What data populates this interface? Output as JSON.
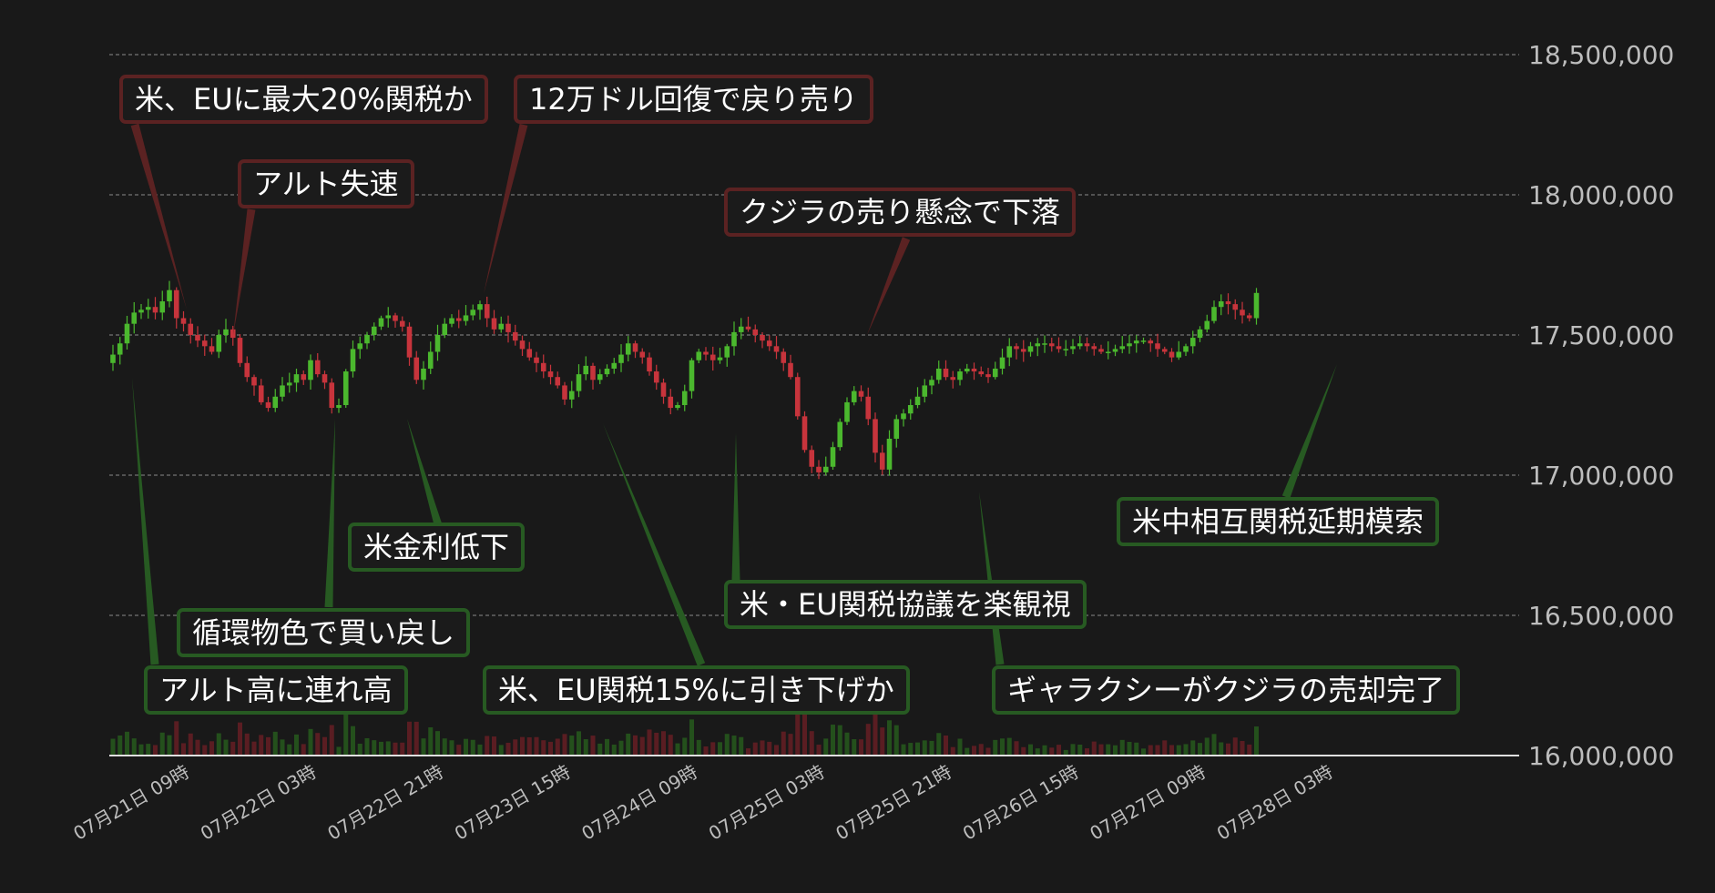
{
  "chart_data": {
    "type": "candlestick",
    "y_axis": {
      "position": "right",
      "ylim": [
        16000000,
        18500000
      ],
      "ticks": [
        16000000,
        16500000,
        17000000,
        17500000,
        18000000,
        18500000
      ],
      "tick_labels": [
        "16,000,000",
        "16,500,000",
        "17,000,000",
        "17,500,000",
        "18,000,000",
        "18,500,000"
      ],
      "grid": "dashed"
    },
    "x_axis": {
      "tick_labels": [
        "07月21日 09時",
        "07月22日 03時",
        "07月22日 21時",
        "07月23日 15時",
        "07月24日 09時",
        "07月25日 03時",
        "07月25日 21時",
        "07月26日 15時",
        "07月27日 09時",
        "07月28日 03時"
      ],
      "tick_candle_index": [
        10,
        28,
        46,
        64,
        82,
        100,
        118,
        136,
        154,
        172
      ],
      "rotation_deg": -30
    },
    "colors": {
      "background": "#191919",
      "up": "#4bb82e",
      "down": "#c7343c",
      "grid": "#8c8c8c",
      "axis_text": "#bdbdbd",
      "negative_annotation": "#5b2222",
      "positive_annotation": "#275a22"
    },
    "series": [
      {
        "kind": "ohlc",
        "close": [
          17430000,
          17470000,
          17540000,
          17580000,
          17590000,
          17600000,
          17580000,
          17620000,
          17660000,
          17560000,
          17540000,
          17500000,
          17480000,
          17460000,
          17440000,
          17500000,
          17520000,
          17490000,
          17400000,
          17350000,
          17320000,
          17260000,
          17240000,
          17280000,
          17320000,
          17330000,
          17360000,
          17340000,
          17410000,
          17360000,
          17330000,
          17240000,
          17250000,
          17370000,
          17450000,
          17470000,
          17500000,
          17530000,
          17560000,
          17570000,
          17550000,
          17530000,
          17420000,
          17340000,
          17380000,
          17440000,
          17500000,
          17540000,
          17560000,
          17550000,
          17570000,
          17590000,
          17610000,
          17560000,
          17520000,
          17540000,
          17510000,
          17480000,
          17450000,
          17420000,
          17400000,
          17370000,
          17350000,
          17320000,
          17270000,
          17300000,
          17360000,
          17390000,
          17340000,
          17360000,
          17380000,
          17400000,
          17430000,
          17470000,
          17440000,
          17420000,
          17370000,
          17330000,
          17280000,
          17240000,
          17250000,
          17300000,
          17410000,
          17440000,
          17430000,
          17410000,
          17420000,
          17460000,
          17510000,
          17530000,
          17520000,
          17500000,
          17480000,
          17460000,
          17440000,
          17400000,
          17350000,
          17210000,
          17090000,
          17030000,
          17010000,
          17030000,
          17100000,
          17190000,
          17260000,
          17300000,
          17280000,
          17200000,
          17080000,
          17020000,
          17130000,
          17200000,
          17220000,
          17250000,
          17280000,
          17320000,
          17340000,
          17380000,
          17350000,
          17340000,
          17370000,
          17380000,
          17370000,
          17360000,
          17350000,
          17380000,
          17420000,
          17460000,
          17450000,
          17440000,
          17460000,
          17470000,
          17470000,
          17460000,
          17450000,
          17450000,
          17460000,
          17470000,
          17460000,
          17450000,
          17440000,
          17440000,
          17450000,
          17460000,
          17470000,
          17480000,
          17480000,
          17470000,
          17450000,
          17440000,
          17420000,
          17440000,
          17460000,
          17490000,
          17520000,
          17550000,
          17600000,
          17620000,
          17610000,
          17590000,
          17570000,
          17560000,
          17650000
        ],
        "note": "Hourly candles from 07月21日 ~00時 to 07月28日 ~06時; values estimated from gridlines."
      }
    ],
    "volume": "small bars along the baseline, colored by candle direction",
    "annotations": [
      {
        "text": "米、EUに最大20%関税か",
        "sentiment": "negative",
        "candle_index": 8
      },
      {
        "text": "12万ドル回復で戻り売り",
        "sentiment": "negative",
        "candle_index": 41
      },
      {
        "text": "アルト失速",
        "sentiment": "negative",
        "candle_index": 14
      },
      {
        "text": "クジラの売り懸念で下落",
        "sentiment": "negative",
        "candle_index": 86
      },
      {
        "text": "アルト高に連れ高",
        "sentiment": "positive",
        "candle_index": 2
      },
      {
        "text": "循環物色で買い戻し",
        "sentiment": "positive",
        "candle_index": 25
      },
      {
        "text": "米金利低下",
        "sentiment": "positive",
        "candle_index": 34
      },
      {
        "text": "米、EU関税15%に引き下げか",
        "sentiment": "positive",
        "candle_index": 56
      },
      {
        "text": "米・EU関税協議を楽観視",
        "sentiment": "positive",
        "candle_index": 72
      },
      {
        "text": "ギャラクシーがクジラの売却完了",
        "sentiment": "positive",
        "candle_index": 102
      },
      {
        "text": "米中相互関税延期模索",
        "sentiment": "positive",
        "candle_index": 153
      }
    ]
  }
}
